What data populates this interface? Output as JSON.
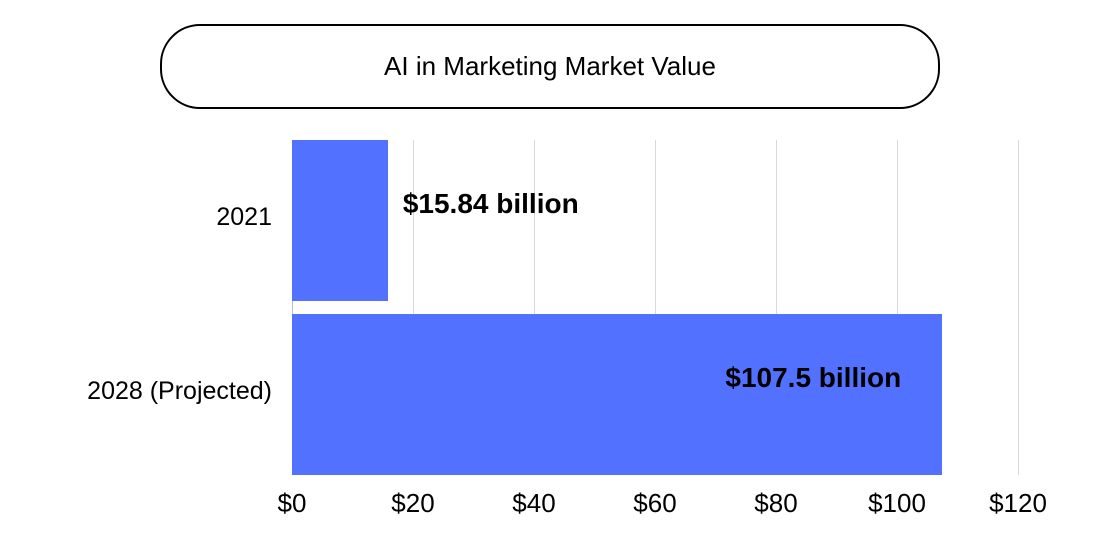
{
  "title": "AI in Marketing Market Value",
  "colors": {
    "bar": "#5271ff",
    "grid": "#d9d9d9",
    "text": "#000000"
  },
  "chart_data": {
    "type": "bar",
    "orientation": "horizontal",
    "title": "AI in Marketing Market Value",
    "categories": [
      "2021",
      "2028 (Projected)"
    ],
    "values": [
      15.84,
      107.5
    ],
    "data_labels": [
      "$15.84 billion",
      "$107.5 billion"
    ],
    "xlabel": "",
    "ylabel": "",
    "unit": "billion USD",
    "xlim": [
      0,
      120
    ],
    "x_ticks": [
      "$0",
      "$20",
      "$40",
      "$60",
      "$80",
      "$100",
      "$120"
    ],
    "grid": true,
    "legend": null
  }
}
